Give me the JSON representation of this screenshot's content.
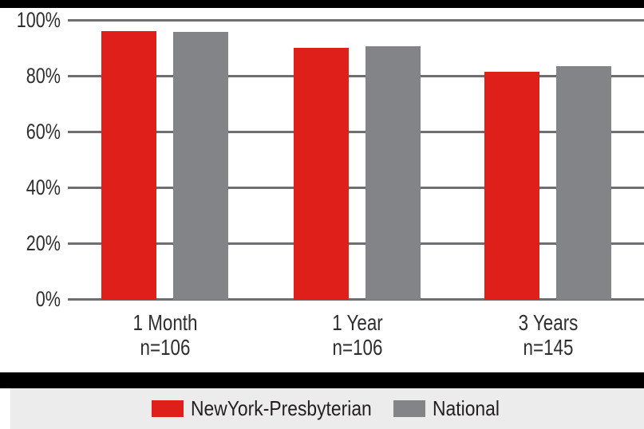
{
  "chart_data": {
    "type": "bar",
    "categories": [
      "1 Month",
      "1 Year",
      "3 Years"
    ],
    "category_sublabels": [
      "n=106",
      "n=106",
      "n=145"
    ],
    "series": [
      {
        "name": "NewYork-Presbyterian",
        "color": "#df1f1a",
        "values": [
          96,
          90,
          81.5
        ]
      },
      {
        "name": "National",
        "color": "#828487",
        "values": [
          95.8,
          90.5,
          83.5
        ]
      }
    ],
    "ylabel_ticks": [
      "0%",
      "20%",
      "40%",
      "60%",
      "80%",
      "100%"
    ],
    "ytick_values": [
      0,
      20,
      40,
      60,
      80,
      100
    ],
    "ylim": [
      0,
      100
    ],
    "xlabel": "",
    "ylabel": "",
    "title": "",
    "grid": true,
    "legend_position": "bottom"
  },
  "palette": {
    "nyp_red": "#df1f1a",
    "national_gray": "#828487",
    "gridline_gray": "#6d6e71",
    "axis_text": "#2f2d30",
    "legend_text": "#231f20",
    "legend_band_bg": "#ececec",
    "strip_black": "#000000",
    "background": "#ffffff"
  }
}
